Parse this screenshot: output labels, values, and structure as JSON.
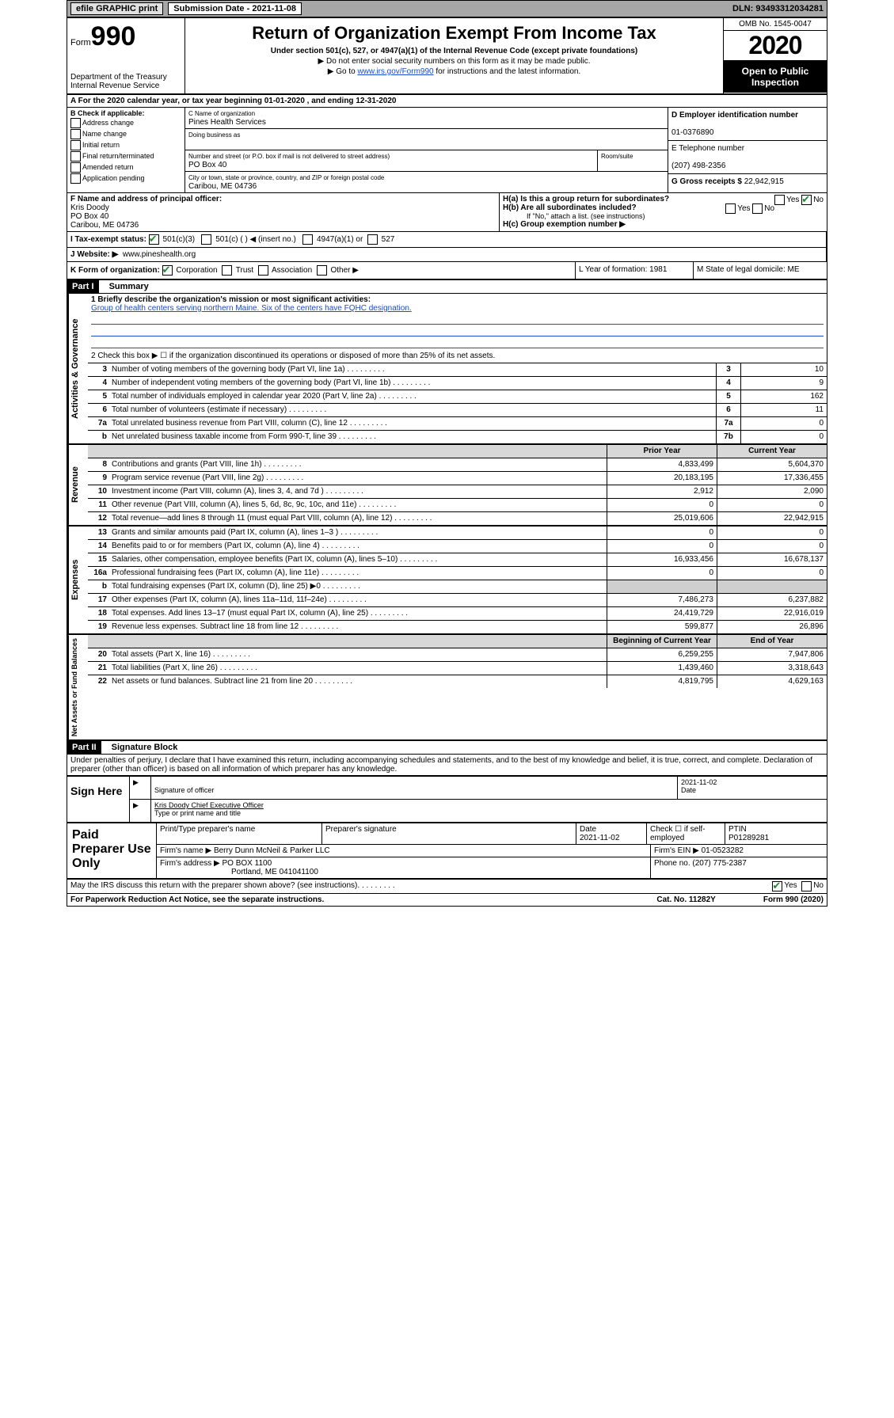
{
  "topbar": {
    "efile": "efile GRAPHIC print",
    "submission_label": "Submission Date - 2021-11-08",
    "dln": "DLN: 93493312034281"
  },
  "header": {
    "form_word": "Form",
    "form_num": "990",
    "dept": "Department of the Treasury\nInternal Revenue Service",
    "title": "Return of Organization Exempt From Income Tax",
    "sub1": "Under section 501(c), 527, or 4947(a)(1) of the Internal Revenue Code (except private foundations)",
    "sub2": "▶ Do not enter social security numbers on this form as it may be made public.",
    "sub3_pre": "▶ Go to ",
    "sub3_link": "www.irs.gov/Form990",
    "sub3_post": " for instructions and the latest information.",
    "omb": "OMB No. 1545-0047",
    "year": "2020",
    "open": "Open to Public Inspection"
  },
  "row_a": "A  For the 2020 calendar year, or tax year beginning 01-01-2020    , and ending 12-31-2020",
  "col_b": {
    "label": "B Check if applicable:",
    "opts": [
      "Address change",
      "Name change",
      "Initial return",
      "Final return/terminated",
      "Amended return",
      "Application pending"
    ]
  },
  "col_c": {
    "name_lbl": "C Name of organization",
    "name": "Pines Health Services",
    "dba_lbl": "Doing business as",
    "addr_lbl": "Number and street (or P.O. box if mail is not delivered to street address)",
    "room_lbl": "Room/suite",
    "addr": "PO Box 40",
    "city_lbl": "City or town, state or province, country, and ZIP or foreign postal code",
    "city": "Caribou, ME  04736"
  },
  "col_d": {
    "ein_lbl": "D Employer identification number",
    "ein": "01-0376890",
    "tel_lbl": "E Telephone number",
    "tel": "(207) 498-2356",
    "gross_lbl": "G Gross receipts $",
    "gross": "22,942,915"
  },
  "row_f": {
    "lbl": "F  Name and address of principal officer:",
    "name": "Kris Doody",
    "addr1": "PO Box 40",
    "addr2": "Caribou, ME  04736"
  },
  "row_h": {
    "a": "H(a)  Is this a group return for subordinates?",
    "a_yes": "Yes",
    "a_no": "No",
    "b": "H(b)  Are all subordinates included?",
    "b_note": "If \"No,\" attach a list. (see instructions)",
    "c": "H(c)  Group exemption number ▶"
  },
  "row_i": {
    "lbl": "I   Tax-exempt status:",
    "o1": "501(c)(3)",
    "o2": "501(c) (   ) ◀ (insert no.)",
    "o3": "4947(a)(1) or",
    "o4": "527"
  },
  "row_j": {
    "lbl": "J   Website: ▶",
    "val": "www.pineshealth.org"
  },
  "row_k": {
    "lbl": "K Form of organization:",
    "opts": [
      "Corporation",
      "Trust",
      "Association",
      "Other ▶"
    ],
    "l": "L Year of formation: 1981",
    "m": "M State of legal domicile: ME"
  },
  "part1": {
    "hdr": "Part I",
    "title": "Summary",
    "q1_lbl": "1  Briefly describe the organization's mission or most significant activities:",
    "q1_val": "Group of health centers serving northern Maine. Six of the centers have FQHC designation.",
    "q2": "2   Check this box ▶ ☐  if the organization discontinued its operations or disposed of more than 25% of its net assets.",
    "rows_gov": [
      {
        "n": "3",
        "d": "Number of voting members of the governing body (Part VI, line 1a)",
        "i": "3",
        "v": "10"
      },
      {
        "n": "4",
        "d": "Number of independent voting members of the governing body (Part VI, line 1b)",
        "i": "4",
        "v": "9"
      },
      {
        "n": "5",
        "d": "Total number of individuals employed in calendar year 2020 (Part V, line 2a)",
        "i": "5",
        "v": "162"
      },
      {
        "n": "6",
        "d": "Total number of volunteers (estimate if necessary)",
        "i": "6",
        "v": "11"
      },
      {
        "n": "7a",
        "d": "Total unrelated business revenue from Part VIII, column (C), line 12",
        "i": "7a",
        "v": "0"
      },
      {
        "n": "b",
        "d": "Net unrelated business taxable income from Form 990-T, line 39",
        "i": "7b",
        "v": "0"
      }
    ],
    "col_prior": "Prior Year",
    "col_curr": "Current Year",
    "rows_rev": [
      {
        "n": "8",
        "d": "Contributions and grants (Part VIII, line 1h)",
        "p": "4,833,499",
        "c": "5,604,370"
      },
      {
        "n": "9",
        "d": "Program service revenue (Part VIII, line 2g)",
        "p": "20,183,195",
        "c": "17,336,455"
      },
      {
        "n": "10",
        "d": "Investment income (Part VIII, column (A), lines 3, 4, and 7d )",
        "p": "2,912",
        "c": "2,090"
      },
      {
        "n": "11",
        "d": "Other revenue (Part VIII, column (A), lines 5, 6d, 8c, 9c, 10c, and 11e)",
        "p": "0",
        "c": "0"
      },
      {
        "n": "12",
        "d": "Total revenue—add lines 8 through 11 (must equal Part VIII, column (A), line 12)",
        "p": "25,019,606",
        "c": "22,942,915"
      }
    ],
    "rows_exp": [
      {
        "n": "13",
        "d": "Grants and similar amounts paid (Part IX, column (A), lines 1–3 )",
        "p": "0",
        "c": "0"
      },
      {
        "n": "14",
        "d": "Benefits paid to or for members (Part IX, column (A), line 4)",
        "p": "0",
        "c": "0"
      },
      {
        "n": "15",
        "d": "Salaries, other compensation, employee benefits (Part IX, column (A), lines 5–10)",
        "p": "16,933,456",
        "c": "16,678,137"
      },
      {
        "n": "16a",
        "d": "Professional fundraising fees (Part IX, column (A), line 11e)",
        "p": "0",
        "c": "0"
      },
      {
        "n": "b",
        "d": "Total fundraising expenses (Part IX, column (D), line 25) ▶0",
        "p": "",
        "c": "",
        "shaded": true
      },
      {
        "n": "17",
        "d": "Other expenses (Part IX, column (A), lines 11a–11d, 11f–24e)",
        "p": "7,486,273",
        "c": "6,237,882"
      },
      {
        "n": "18",
        "d": "Total expenses. Add lines 13–17 (must equal Part IX, column (A), line 25)",
        "p": "24,419,729",
        "c": "22,916,019"
      },
      {
        "n": "19",
        "d": "Revenue less expenses. Subtract line 18 from line 12",
        "p": "599,877",
        "c": "26,896"
      }
    ],
    "col_beg": "Beginning of Current Year",
    "col_end": "End of Year",
    "rows_net": [
      {
        "n": "20",
        "d": "Total assets (Part X, line 16)",
        "p": "6,259,255",
        "c": "7,947,806"
      },
      {
        "n": "21",
        "d": "Total liabilities (Part X, line 26)",
        "p": "1,439,460",
        "c": "3,318,643"
      },
      {
        "n": "22",
        "d": "Net assets or fund balances. Subtract line 21 from line 20",
        "p": "4,819,795",
        "c": "4,629,163"
      }
    ]
  },
  "part2": {
    "hdr": "Part II",
    "title": "Signature Block",
    "decl": "Under penalties of perjury, I declare that I have examined this return, including accompanying schedules and statements, and to the best of my knowledge and belief, it is true, correct, and complete. Declaration of preparer (other than officer) is based on all information of which preparer has any knowledge."
  },
  "sign": {
    "left": "Sign Here",
    "sig_lbl": "Signature of officer",
    "date": "2021-11-02",
    "date_lbl": "Date",
    "name": "Kris Doody  Chief Executive Officer",
    "name_lbl": "Type or print name and title"
  },
  "prep": {
    "left": "Paid Preparer Use Only",
    "r1": {
      "a": "Print/Type preparer's name",
      "b": "Preparer's signature",
      "c": "Date\n2021-11-02",
      "d": "Check ☐ if self-employed",
      "e": "PTIN\nP01289281"
    },
    "r2": {
      "a": "Firm's name      ▶ Berry Dunn McNeil & Parker LLC",
      "b": "Firm's EIN ▶ 01-0523282"
    },
    "r3": {
      "a": "Firm's address ▶ PO BOX 1100",
      "b": "Phone no. (207) 775-2387"
    },
    "r3b": "Portland, ME  041041100"
  },
  "footer": {
    "q": "May the IRS discuss this return with the preparer shown above? (see instructions)",
    "yes": "Yes",
    "no": "No",
    "pra": "For Paperwork Reduction Act Notice, see the separate instructions.",
    "cat": "Cat. No. 11282Y",
    "form": "Form 990 (2020)"
  }
}
